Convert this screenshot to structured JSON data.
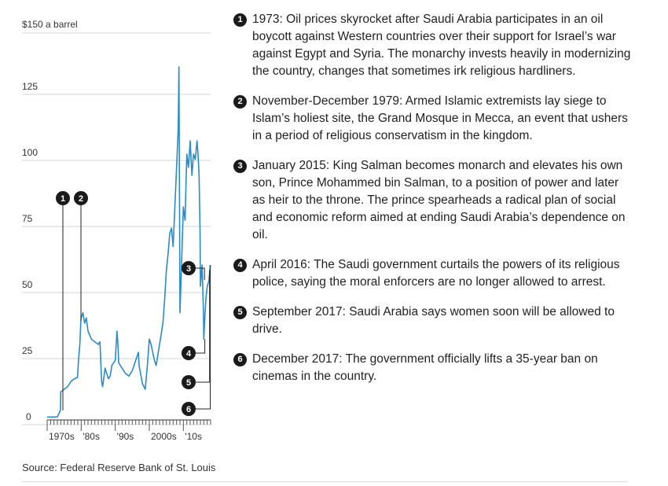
{
  "chart_data": {
    "type": "line",
    "title": "",
    "ylabel_top": "$150 a barrel",
    "y_ticks": [
      "125",
      "100",
      "75",
      "50",
      "25",
      "0"
    ],
    "y_tick_values": [
      125,
      100,
      75,
      50,
      25,
      0
    ],
    "ylim": [
      0,
      150
    ],
    "x_ticks": [
      "1970s",
      "'80s",
      "'90s",
      "2000s",
      "'10s"
    ],
    "x_tick_years": [
      1970,
      1980,
      1990,
      2000,
      2010
    ],
    "xlim": [
      1970,
      2018
    ],
    "grid": true,
    "series": [
      {
        "color": "#2a8bc6",
        "x": [
          1970,
          1972,
          1973,
          1973.9,
          1974,
          1974.5,
          1975,
          1976,
          1977,
          1978,
          1978.9,
          1979.2,
          1979.6,
          1979.9,
          1980,
          1980.5,
          1981,
          1981.5,
          1982,
          1983,
          1984,
          1985,
          1985.5,
          1986,
          1986.3,
          1986.7,
          1987,
          1987.5,
          1988,
          1988.5,
          1989,
          1990,
          1990.5,
          1990.8,
          1991,
          1991.5,
          1992,
          1993,
          1994,
          1995,
          1996,
          1996.8,
          1997,
          1998,
          1998.8,
          1999,
          1999.5,
          2000,
          2000.5,
          2001,
          2001.5,
          2002,
          2003,
          2003.5,
          2004,
          2004.5,
          2005,
          2005.5,
          2006,
          2006.5,
          2007,
          2007.5,
          2008,
          2008.5,
          2008.7,
          2008.9,
          2009,
          2009.5,
          2010,
          2010.5,
          2011,
          2011.5,
          2012,
          2012.5,
          2013,
          2013.5,
          2014,
          2014.3,
          2014.6,
          2014.9,
          2015,
          2015.5,
          2015.9,
          2016,
          2016.3,
          2016.6,
          2017,
          2017.5,
          2017.9
        ],
        "values": [
          0.5,
          0.5,
          0.6,
          3,
          10,
          10.5,
          11,
          12,
          14,
          15,
          15.5,
          22,
          28,
          37,
          38,
          40,
          36,
          38,
          33,
          30,
          29,
          28,
          29,
          14,
          12,
          16,
          19,
          17,
          15,
          16,
          20,
          22,
          33,
          28,
          21,
          20,
          19,
          17,
          16,
          18,
          22,
          25,
          20,
          13,
          11,
          14,
          21,
          30,
          28,
          25,
          22,
          20,
          28,
          32,
          36,
          45,
          56,
          62,
          70,
          72,
          65,
          80,
          95,
          110,
          133,
          70,
          40,
          60,
          80,
          75,
          100,
          95,
          105,
          92,
          100,
          98,
          105,
          100,
          92,
          70,
          50,
          58,
          40,
          30,
          38,
          45,
          50,
          52,
          58
        ]
      }
    ],
    "markers": [
      {
        "label": "1",
        "year": 1973.6,
        "target": 3
      },
      {
        "label": "2",
        "year": 1979.9,
        "target": 37
      },
      {
        "label": "3",
        "year": 2015.0,
        "target": 50
      },
      {
        "label": "4",
        "year": 2016.3,
        "target": 30
      },
      {
        "label": "5",
        "year": 2017.7,
        "target": 56
      },
      {
        "label": "6",
        "year": 2017.9,
        "target": 58
      }
    ]
  },
  "annotations": [
    {
      "num": "1",
      "text": "1973: Oil prices skyrocket after Saudi Arabia participates in an oil boycott against Western countries over their support for Israel’s war against Egypt and Syria. The monarchy invests heavily in modernizing the country, changes that sometimes irk religious hardliners."
    },
    {
      "num": "2",
      "text": "November-December 1979: Armed Islamic extremists lay siege to Islam’s holiest site, the Grand Mosque in Mecca, an event that ushers in a period of religious conservatism in the kingdom."
    },
    {
      "num": "3",
      "text": "January 2015: King Salman becomes monarch and elevates his own son, Prince Mohammed bin Salman, to a position of power and later as heir to the throne. The prince spearheads a radical plan of social and economic reform aimed at ending Saudi Arabia’s dependence on oil."
    },
    {
      "num": "4",
      "text": "April 2016: The Saudi government curtails the powers of its religious police, saying the moral enforcers are no longer allowed to arrest."
    },
    {
      "num": "5",
      "text": "September 2017: Saudi Arabia says women soon will be allowed to drive."
    },
    {
      "num": "6",
      "text": "December 2017: The government officially lifts a 35-year ban on cinemas in the country."
    }
  ],
  "source": "Source: Federal Reserve Bank of St. Louis"
}
